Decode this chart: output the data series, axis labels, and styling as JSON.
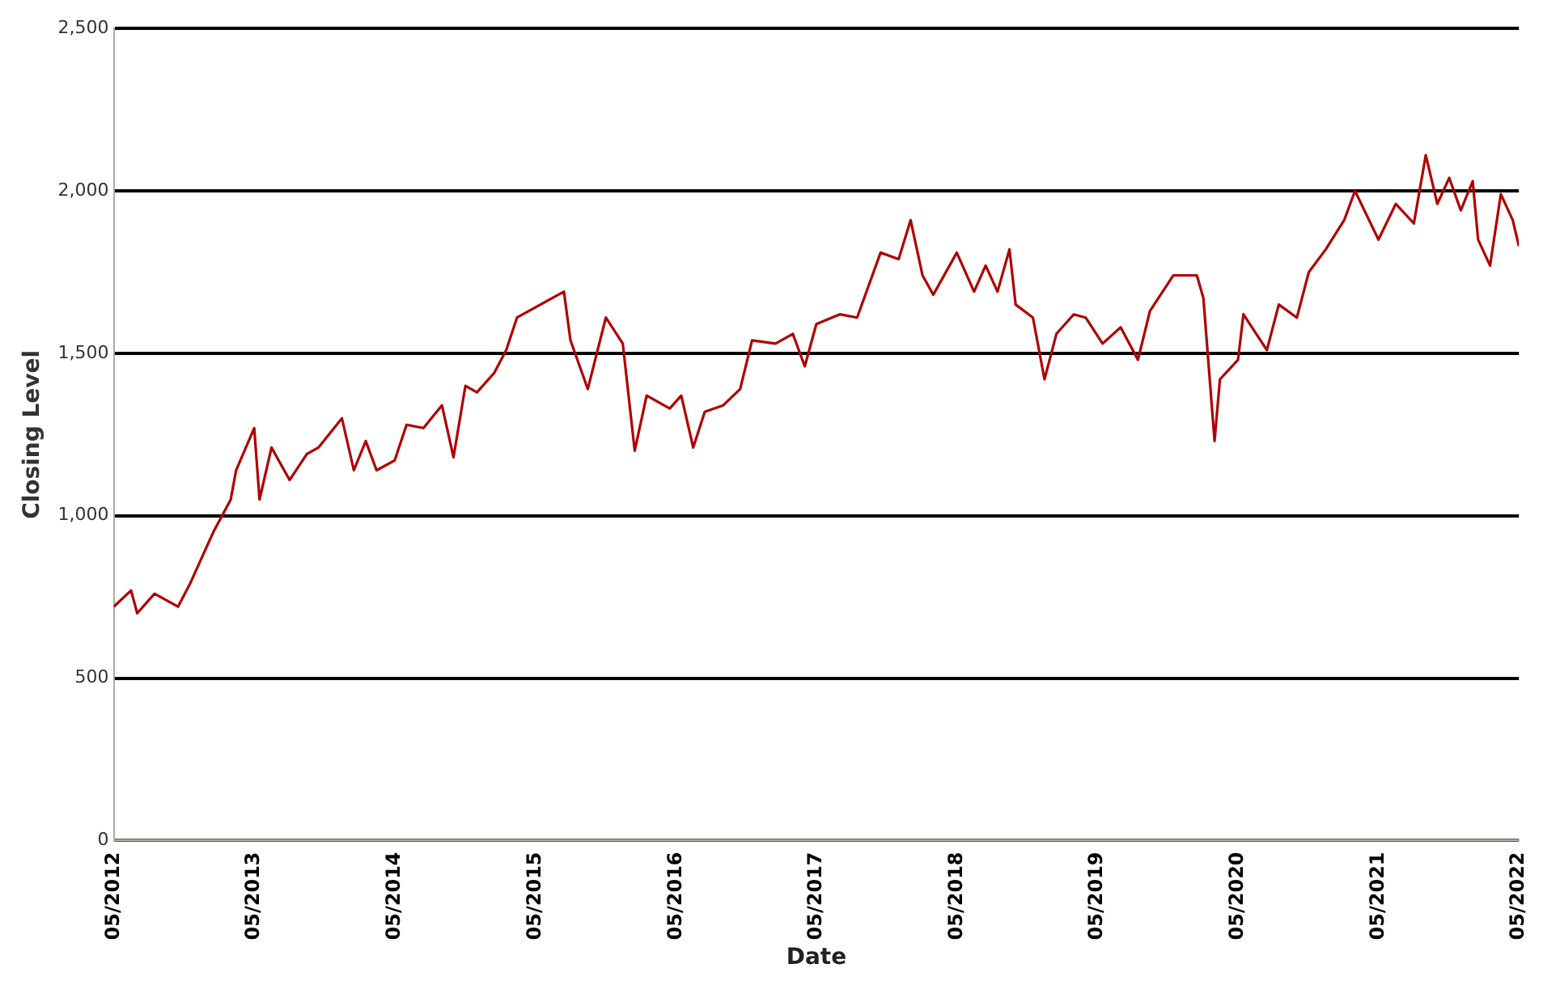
{
  "chart_data": {
    "type": "line",
    "xlabel": "Date",
    "ylabel": "Closing Level",
    "xlim": [
      "2012-05",
      "2022-05"
    ],
    "xticks": [
      {
        "value": "2012-05",
        "label": "05/2012"
      },
      {
        "value": "2013-05",
        "label": "05/2013"
      },
      {
        "value": "2014-05",
        "label": "05/2014"
      },
      {
        "value": "2015-05",
        "label": "05/2015"
      },
      {
        "value": "2016-05",
        "label": "05/2016"
      },
      {
        "value": "2017-05",
        "label": "05/2017"
      },
      {
        "value": "2018-05",
        "label": "05/2018"
      },
      {
        "value": "2019-05",
        "label": "05/2019"
      },
      {
        "value": "2020-05",
        "label": "05/2020"
      },
      {
        "value": "2021-05",
        "label": "05/2021"
      },
      {
        "value": "2022-05",
        "label": "05/2022"
      }
    ],
    "ylim": [
      0,
      2500
    ],
    "yticks": [
      0,
      500,
      {
        "value": 1000,
        "label": "1,000"
      },
      {
        "value": 1500,
        "label": "1,500"
      },
      {
        "value": 2000,
        "label": "2,000"
      },
      {
        "value": 2500,
        "label": "2,500"
      }
    ],
    "grid": "y",
    "legend": false,
    "marker": "none",
    "line_style": "solid",
    "x": [
      "2012-05-01",
      "2012-06-15",
      "2012-07-01",
      "2012-08-15",
      "2012-10-15",
      "2012-11-15",
      "2013-01-15",
      "2013-03-01",
      "2013-03-15",
      "2013-05-01",
      "2013-05-15",
      "2013-06-15",
      "2013-08-01",
      "2013-09-15",
      "2013-10-15",
      "2013-12-15",
      "2014-01-15",
      "2014-02-15",
      "2014-03-15",
      "2014-05-01",
      "2014-06-01",
      "2014-07-15",
      "2014-09-01",
      "2014-10-01",
      "2014-11-01",
      "2014-12-01",
      "2015-01-15",
      "2015-02-15",
      "2015-03-15",
      "2015-05-15",
      "2015-07-15",
      "2015-08-01",
      "2015-09-15",
      "2015-11-01",
      "2015-12-15",
      "2016-01-15",
      "2016-02-15",
      "2016-04-15",
      "2016-05-15",
      "2016-06-15",
      "2016-07-15",
      "2016-09-01",
      "2016-10-15",
      "2016-11-15",
      "2017-01-15",
      "2017-03-01",
      "2017-04-01",
      "2017-05-01",
      "2017-07-01",
      "2017-08-15",
      "2017-10-15",
      "2017-12-01",
      "2018-01-01",
      "2018-02-01",
      "2018-03-01",
      "2018-05-01",
      "2018-06-15",
      "2018-07-15",
      "2018-08-15",
      "2018-09-15",
      "2018-10-01",
      "2018-11-15",
      "2018-12-15",
      "2019-01-15",
      "2019-03-01",
      "2019-04-01",
      "2019-05-15",
      "2019-07-01",
      "2019-08-15",
      "2019-09-15",
      "2019-11-15",
      "2020-01-15",
      "2020-02-01",
      "2020-03-01",
      "2020-03-15",
      "2020-05-01",
      "2020-05-15",
      "2020-07-15",
      "2020-08-15",
      "2020-10-01",
      "2020-11-01",
      "2020-12-15",
      "2021-02-01",
      "2021-03-01",
      "2021-05-01",
      "2021-06-15",
      "2021-08-01",
      "2021-09-01",
      "2021-10-01",
      "2021-11-01",
      "2021-12-01",
      "2022-01-01",
      "2022-01-15",
      "2022-02-15",
      "2022-03-15",
      "2022-04-15",
      "2022-05-01"
    ],
    "series": [
      {
        "color": "#b00000",
        "values": [
          720,
          770,
          700,
          760,
          720,
          790,
          950,
          1050,
          1140,
          1270,
          1050,
          1210,
          1110,
          1190,
          1210,
          1300,
          1140,
          1230,
          1140,
          1170,
          1280,
          1270,
          1340,
          1180,
          1400,
          1380,
          1440,
          1510,
          1610,
          1650,
          1690,
          1540,
          1390,
          1610,
          1530,
          1200,
          1370,
          1330,
          1370,
          1210,
          1320,
          1340,
          1390,
          1540,
          1530,
          1560,
          1460,
          1590,
          1620,
          1610,
          1810,
          1790,
          1910,
          1740,
          1680,
          1810,
          1690,
          1770,
          1690,
          1820,
          1650,
          1610,
          1420,
          1560,
          1620,
          1610,
          1530,
          1580,
          1480,
          1630,
          1740,
          1740,
          1670,
          1230,
          1420,
          1480,
          1620,
          1510,
          1650,
          1610,
          1750,
          1820,
          1910,
          2000,
          1850,
          1960,
          1900,
          2110,
          1960,
          2040,
          1940,
          2030,
          1850,
          1770,
          1990,
          1910,
          1830
        ]
      }
    ]
  }
}
